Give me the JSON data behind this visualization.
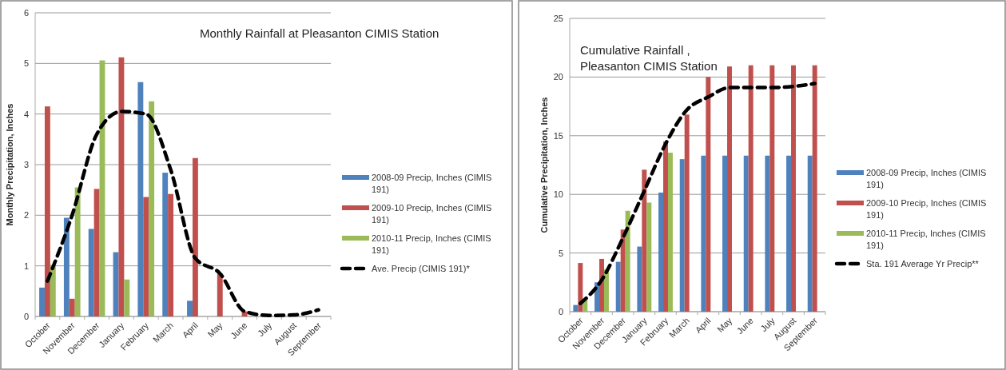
{
  "chart_data": [
    {
      "type": "bar",
      "title": "Monthly Rainfall at Pleasanton CIMIS Station",
      "ylabel": "Monthly Precipitation, Inches",
      "categories": [
        "October",
        "November",
        "December",
        "January",
        "February",
        "March",
        "April",
        "May",
        "June",
        "July",
        "August",
        "September"
      ],
      "ylim": [
        0,
        6
      ],
      "yticks": [
        0,
        1,
        2,
        3,
        4,
        5,
        6
      ],
      "grid": "y",
      "legend": "right",
      "series": [
        {
          "name": "2008-09 Precip, Inches (CIMIS 191)",
          "color": "#4f81bd",
          "values": [
            0.57,
            1.95,
            1.73,
            1.27,
            4.63,
            2.84,
            0.31,
            0,
            0,
            0,
            0,
            0
          ]
        },
        {
          "name": "2009-10 Precip, Inches (CIMIS 191)",
          "color": "#c0504d",
          "values": [
            4.15,
            0.35,
            2.52,
            5.12,
            2.36,
            2.42,
            3.13,
            0.85,
            0.1,
            0,
            0,
            0
          ]
        },
        {
          "name": "2010-11 Precip, Inches (CIMIS 191)",
          "color": "#9bbb59",
          "values": [
            1.02,
            2.55,
            5.06,
            0.73,
            4.25,
            null,
            null,
            null,
            null,
            null,
            null,
            null
          ]
        },
        {
          "name": "Ave. Precip (CIMIS 191)*",
          "type": "line",
          "color": "#000000",
          "line_style": "dashed",
          "marker": "none",
          "values": [
            0.7,
            2.0,
            3.6,
            4.05,
            4.0,
            2.9,
            1.15,
            0.85,
            0.1,
            0.02,
            0.03,
            0.13
          ]
        }
      ]
    },
    {
      "type": "bar",
      "title": "Cumulative Rainfall , Pleasanton CIMIS Station",
      "ylabel": "Cumulative Precipitation, Inches",
      "categories": [
        "October",
        "November",
        "December",
        "January",
        "February",
        "March",
        "April",
        "May",
        "June",
        "July",
        "August",
        "September"
      ],
      "ylim": [
        0,
        25
      ],
      "yticks": [
        0,
        5,
        10,
        15,
        20,
        25
      ],
      "grid": "y",
      "legend": "right",
      "series": [
        {
          "name": "2008-09 Precip, Inches (CIMIS 191)",
          "color": "#4f81bd",
          "values": [
            0.57,
            2.5,
            4.25,
            5.55,
            10.15,
            13.0,
            13.3,
            13.3,
            13.3,
            13.3,
            13.3,
            13.3
          ]
        },
        {
          "name": "2009-10 Precip, Inches (CIMIS 191)",
          "color": "#c0504d",
          "values": [
            4.15,
            4.5,
            7.0,
            12.1,
            14.5,
            16.8,
            20.0,
            20.9,
            21.0,
            21.0,
            21.0,
            21.0
          ]
        },
        {
          "name": "2010-11 Precip, Inches (CIMIS 191)",
          "color": "#9bbb59",
          "values": [
            1.0,
            3.6,
            8.6,
            9.3,
            13.55,
            null,
            null,
            null,
            null,
            null,
            null,
            null
          ]
        },
        {
          "name": "Sta. 191 Average Yr Precip**",
          "type": "line",
          "color": "#000000",
          "line_style": "dashed",
          "marker": "none",
          "values": [
            0.7,
            2.7,
            6.3,
            10.3,
            14.3,
            17.2,
            18.3,
            19.1,
            19.1,
            19.1,
            19.2,
            19.45
          ]
        }
      ]
    }
  ]
}
